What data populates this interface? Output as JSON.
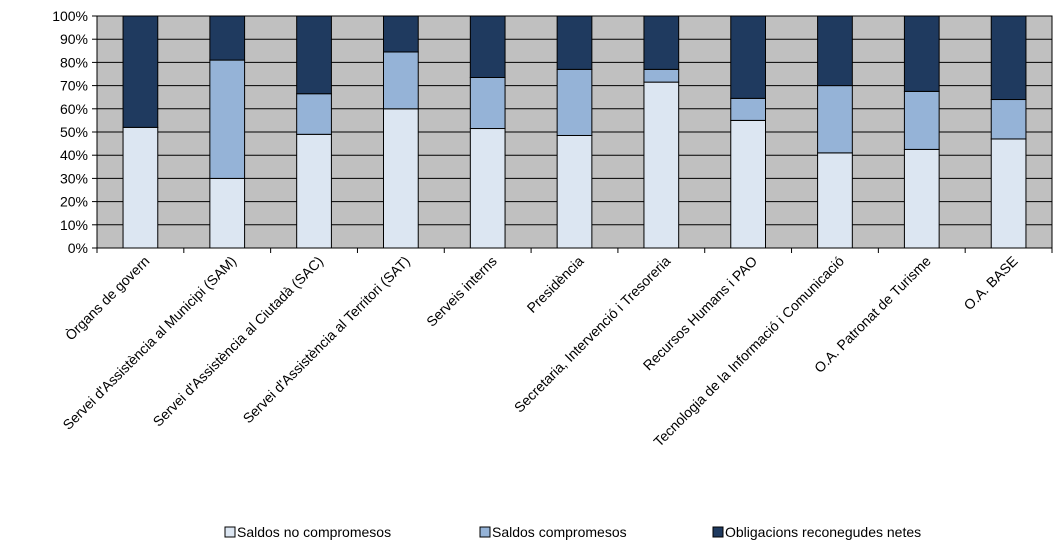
{
  "chart_data": {
    "type": "bar",
    "stacked": true,
    "percent_stacked": true,
    "categories": [
      "Òrgans de govern",
      "Servei d'Assistència al Municipi (SAM)",
      "Servei d'Assistència al Ciutadà (SAC)",
      "Servei d'Assistència al Territori (SAT)",
      "Serveis interns",
      "Presidència",
      "Secretaria, Intervenció i Tresoreria",
      "Recursos Humans i PAO",
      "Tecnologia de la Informació i Comunicació",
      "O.A. Patronat de Turisme",
      "O.A. BASE"
    ],
    "series": [
      {
        "name": "Saldos no compromesos",
        "color": "#dce6f2",
        "values": [
          52,
          30,
          49,
          60,
          51.5,
          48.5,
          71.5,
          55,
          41,
          42.5,
          47
        ]
      },
      {
        "name": "Saldos compromesos",
        "color": "#95b3d7",
        "values": [
          0,
          51,
          17.5,
          24.5,
          22,
          28.5,
          5.5,
          9.5,
          29,
          25,
          17
        ]
      },
      {
        "name": "Obligacions reconegudes netes",
        "color": "#1f3a5f",
        "values": [
          48,
          19,
          33.5,
          15.5,
          26.5,
          23,
          23,
          35.5,
          30,
          32.5,
          36
        ]
      }
    ],
    "yticks": [
      "0%",
      "10%",
      "20%",
      "30%",
      "40%",
      "50%",
      "60%",
      "70%",
      "80%",
      "90%",
      "100%"
    ],
    "ylim": [
      0,
      100
    ],
    "grid": true,
    "plot_background": "#c0c0c0",
    "legend_position": "bottom"
  }
}
